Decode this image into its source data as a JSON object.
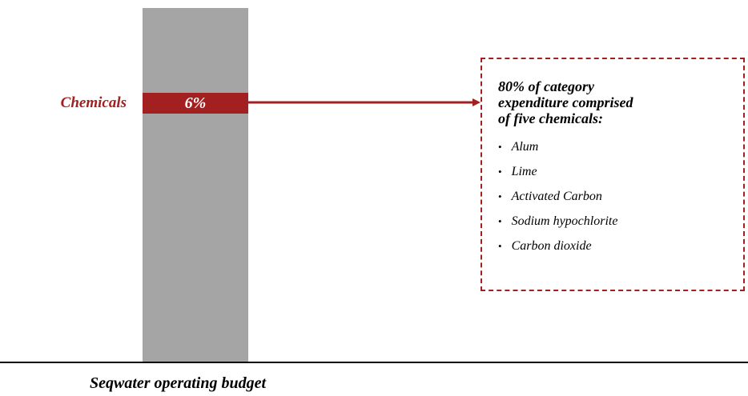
{
  "bar": {
    "segment_label": "Chemicals",
    "segment_value_label": "6%"
  },
  "callout": {
    "title_lines": [
      "80% of category",
      "expenditure comprised",
      "of five chemicals:"
    ],
    "items": [
      "Alum",
      "Lime",
      "Activated Carbon",
      "Sodium hypochlorite",
      "Carbon dioxide"
    ]
  },
  "footer": "Seqwater operating budget"
}
